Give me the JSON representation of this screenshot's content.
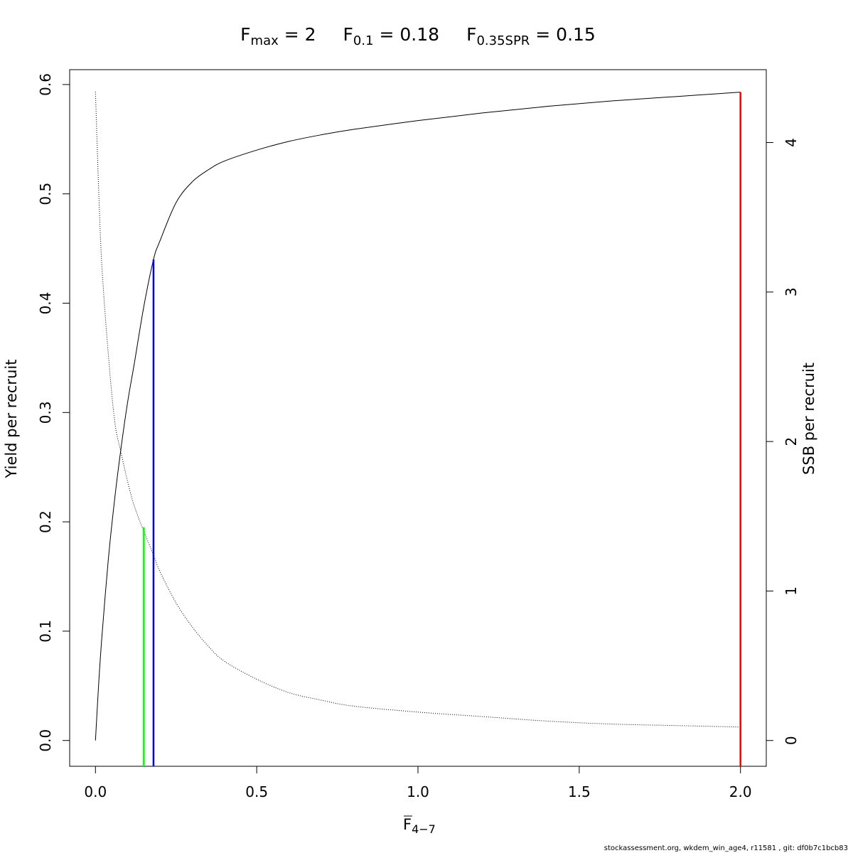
{
  "chart_data": {
    "type": "line",
    "title_parts": {
      "fmax": {
        "base": "F",
        "sub": "max",
        "rest": " = 2"
      },
      "f01": {
        "base": "F",
        "sub": "0.1",
        "rest": " = 0.18"
      },
      "fspr": {
        "base": "F",
        "sub": "0.35SPR",
        "rest": " = 0.15"
      }
    },
    "xlabel": {
      "base": "F",
      "sub": "4−7"
    },
    "ylabel_left": "Yield per recruit",
    "ylabel_right": "SSB per recruit",
    "xlim": [
      -0.08,
      2.08
    ],
    "ylim_left": [
      -0.0236,
      0.6136
    ],
    "ylim_right": [
      -0.1725,
      4.4875
    ],
    "x_ticks": [
      0,
      0.5,
      1,
      1.5,
      2
    ],
    "x_tick_labels": [
      "0.0",
      "0.5",
      "1.0",
      "1.5",
      "2.0"
    ],
    "y_left_ticks": [
      0,
      0.1,
      0.2,
      0.3,
      0.4,
      0.5,
      0.6
    ],
    "y_left_tick_labels": [
      "0.0",
      "0.1",
      "0.2",
      "0.3",
      "0.4",
      "0.5",
      "0.6"
    ],
    "y_right_ticks": [
      0,
      1,
      2,
      3,
      4
    ],
    "y_right_tick_labels": [
      "0",
      "1",
      "2",
      "3",
      "4"
    ],
    "series": [
      {
        "axis": "left",
        "style": "solid",
        "color": "#000000",
        "x": [
          0,
          0.01,
          0.02,
          0.04,
          0.06,
          0.08,
          0.1,
          0.12,
          0.15,
          0.18,
          0.2,
          0.25,
          0.3,
          0.35,
          0.4,
          0.5,
          0.6,
          0.7,
          0.8,
          1.0,
          1.2,
          1.4,
          1.6,
          1.8,
          2.0
        ],
        "values": [
          0,
          0.052,
          0.095,
          0.166,
          0.222,
          0.269,
          0.31,
          0.344,
          0.397,
          0.44,
          0.457,
          0.492,
          0.511,
          0.522,
          0.53,
          0.54,
          0.548,
          0.554,
          0.559,
          0.567,
          0.574,
          0.58,
          0.585,
          0.589,
          0.593
        ]
      },
      {
        "axis": "right",
        "style": "dotted",
        "color": "#000000",
        "x": [
          0,
          0.01,
          0.02,
          0.04,
          0.06,
          0.08,
          0.1,
          0.12,
          0.15,
          0.18,
          0.2,
          0.25,
          0.3,
          0.35,
          0.4,
          0.5,
          0.6,
          0.7,
          0.8,
          1.0,
          1.2,
          1.4,
          1.6,
          1.8,
          2.0
        ],
        "values": [
          4.34,
          3.68,
          3.17,
          2.58,
          2.13,
          1.92,
          1.73,
          1.57,
          1.4,
          1.24,
          1.13,
          0.92,
          0.76,
          0.63,
          0.53,
          0.41,
          0.32,
          0.27,
          0.23,
          0.19,
          0.16,
          0.13,
          0.11,
          0.1,
          0.09
        ]
      }
    ],
    "reference_lines": [
      {
        "name": "F0.35SPR",
        "x": 0.15,
        "y_top": 0.195,
        "color": "#00ff00"
      },
      {
        "name": "F0.1",
        "x": 0.18,
        "y_top": 0.44,
        "color": "#0000ff"
      },
      {
        "name": "Fmax",
        "x": 2.0,
        "y_top": 0.593,
        "color": "#ff0000"
      }
    ]
  },
  "footer": "stockassessment.org, wkdem_win_age4, r11581 , git: df0b7c1bcb83"
}
